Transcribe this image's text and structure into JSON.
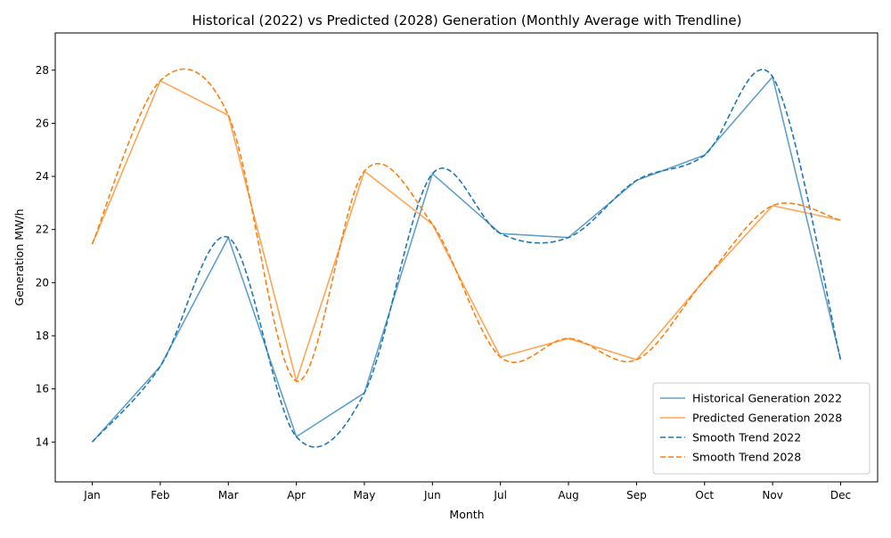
{
  "chart_data": {
    "type": "line",
    "title": "Historical (2022) vs Predicted (2028) Generation (Monthly Average with Trendline)",
    "xlabel": "Month",
    "ylabel": "Generation MW/h",
    "categories": [
      "Jan",
      "Feb",
      "Mar",
      "Apr",
      "May",
      "Jun",
      "Jul",
      "Aug",
      "Sep",
      "Oct",
      "Nov",
      "Dec"
    ],
    "ylim": [
      12.5,
      29.4
    ],
    "yticks": [
      14,
      16,
      18,
      20,
      22,
      24,
      26,
      28
    ],
    "ytick_labels": [
      "14",
      "16",
      "18",
      "20",
      "22",
      "24",
      "26",
      "28"
    ],
    "grid": false,
    "legend_position": "lower-right",
    "series": [
      {
        "name": "Historical Generation 2022",
        "style": "solid",
        "color": "#1f77b4",
        "opacity": 0.7,
        "values": [
          14.0,
          16.85,
          21.7,
          14.2,
          15.85,
          24.1,
          21.85,
          21.7,
          23.85,
          24.8,
          27.75,
          17.1
        ]
      },
      {
        "name": "Predicted Generation 2028",
        "style": "solid",
        "color": "#ff7f0e",
        "opacity": 0.7,
        "values": [
          21.45,
          27.6,
          26.3,
          16.3,
          24.2,
          22.2,
          17.2,
          17.9,
          17.1,
          20.1,
          22.9,
          22.35
        ]
      },
      {
        "name": "Smooth Trend 2022",
        "style": "dashed",
        "color": "#1f77b4",
        "opacity": 1,
        "trend_of": 0
      },
      {
        "name": "Smooth Trend 2028",
        "style": "dashed",
        "color": "#ff7f0e",
        "opacity": 1,
        "trend_of": 1
      }
    ]
  }
}
